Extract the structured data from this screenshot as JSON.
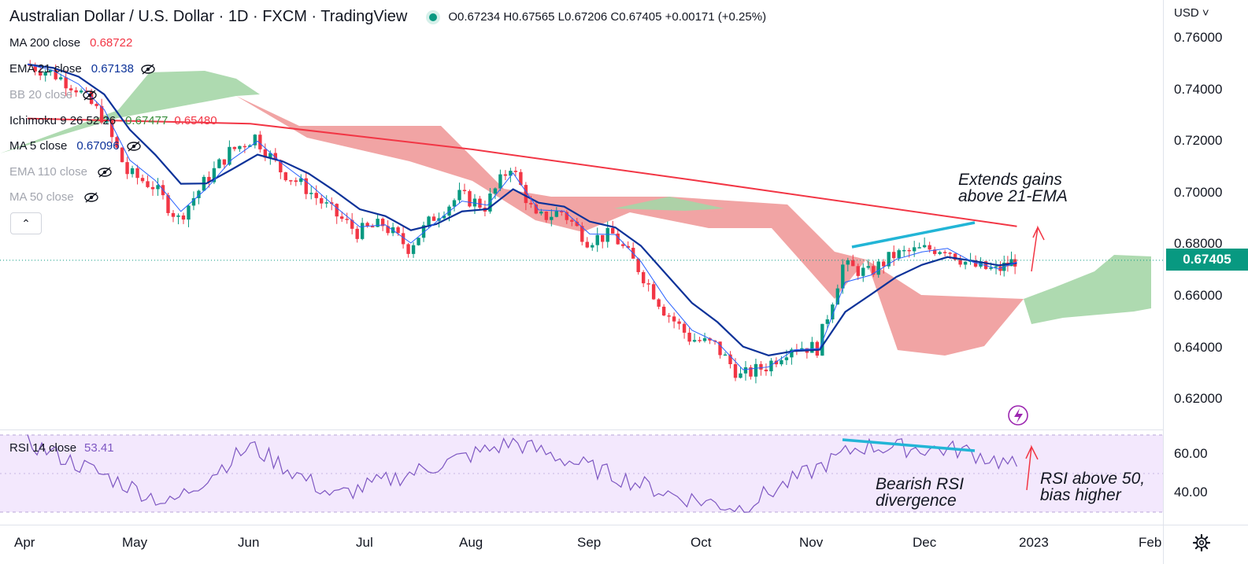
{
  "header": {
    "symbol_title": "Australian Dollar / U.S. Dollar · 1D · FXCM · TradingView",
    "ohlc": {
      "open": "O0.67234",
      "high": "H0.67565",
      "low": "L0.67206",
      "close": "C0.67405",
      "change": "+0.00171",
      "change_pct": "(+0.25%)"
    }
  },
  "indicators": [
    {
      "label": "MA 200 close",
      "values": [
        "0.68722"
      ],
      "color": "#f23645",
      "hidden": false
    },
    {
      "label": "EMA 21 close",
      "values": [
        "0.67138"
      ],
      "color": "#0c3299",
      "hidden": false
    },
    {
      "label": "BB 20 close",
      "values": [],
      "hidden": true
    },
    {
      "label": "Ichimoku 9 26 52 26",
      "values": [
        "0.67477",
        "0.65480"
      ],
      "colors": [
        "#388e3c",
        "#f23645"
      ],
      "hidden": false
    },
    {
      "label": "MA 5 close",
      "values": [
        "0.67096"
      ],
      "color": "#0c3299",
      "hidden": false
    },
    {
      "label": "EMA 110 close",
      "values": [],
      "hidden": true
    },
    {
      "label": "MA 50 close",
      "values": [],
      "hidden": true
    }
  ],
  "rsi_legend": {
    "label": "RSI 14 close",
    "value": "53.41"
  },
  "price_axis": {
    "currency": "USD",
    "ticks": [
      "0.76000",
      "0.74000",
      "0.72000",
      "0.70000",
      "0.68000",
      "0.66000",
      "0.64000",
      "0.62000"
    ],
    "last_price": "0.67405"
  },
  "rsi_axis": {
    "ticks": [
      "60.00",
      "40.00"
    ]
  },
  "time_axis": {
    "ticks": [
      "Apr",
      "May",
      "Jun",
      "Jul",
      "Aug",
      "Sep",
      "Oct",
      "Nov",
      "Dec",
      "2023",
      "Feb"
    ]
  },
  "annotations": {
    "price_note": "Extends gains\nabove 21-EMA",
    "rsi_div_note": "Bearish RSI\ndivergence",
    "rsi_bias_note": "RSI above 50,\nbias higher"
  },
  "colors": {
    "up": "#089981",
    "down": "#f23645",
    "ma200": "#f23645",
    "ema21": "#0c3299",
    "ma5": "#2962ff",
    "cloud_bull": "#a5d6a7",
    "cloud_bear": "#ef9a9a",
    "rsi_line": "#7e57c2",
    "rsi_band": "#f3e8fd",
    "trendline": "#22b5d6"
  },
  "chart_data": {
    "type": "candlestick",
    "symbol": "AUDUSD",
    "timeframe": "1D",
    "close_series": {
      "x": [
        "2022-04-01",
        "2022-04-08",
        "2022-04-15",
        "2022-04-22",
        "2022-04-29",
        "2022-05-06",
        "2022-05-13",
        "2022-05-20",
        "2022-05-27",
        "2022-06-03",
        "2022-06-10",
        "2022-06-17",
        "2022-06-24",
        "2022-07-01",
        "2022-07-08",
        "2022-07-15",
        "2022-07-22",
        "2022-07-29",
        "2022-08-05",
        "2022-08-12",
        "2022-08-19",
        "2022-08-26",
        "2022-09-02",
        "2022-09-09",
        "2022-09-16",
        "2022-09-23",
        "2022-09-30",
        "2022-10-07",
        "2022-10-14",
        "2022-10-21",
        "2022-10-28",
        "2022-11-04",
        "2022-11-11",
        "2022-11-18",
        "2022-11-25",
        "2022-12-02",
        "2022-12-09",
        "2022-12-16",
        "2022-12-23",
        "2022-12-28"
      ],
      "close": [
        0.75,
        0.747,
        0.741,
        0.73,
        0.708,
        0.703,
        0.69,
        0.704,
        0.716,
        0.722,
        0.709,
        0.702,
        0.693,
        0.685,
        0.688,
        0.679,
        0.691,
        0.699,
        0.695,
        0.711,
        0.69,
        0.693,
        0.682,
        0.684,
        0.671,
        0.655,
        0.644,
        0.641,
        0.629,
        0.633,
        0.641,
        0.64,
        0.672,
        0.669,
        0.676,
        0.678,
        0.679,
        0.672,
        0.67,
        0.67405
      ]
    },
    "ma200": {
      "x": [
        "2022-04-01",
        "2022-06-01",
        "2022-08-01",
        "2022-10-01",
        "2022-12-28"
      ],
      "y": [
        0.729,
        0.727,
        0.717,
        0.705,
        0.68722
      ]
    },
    "ema21_last": 0.67138,
    "ma5_last": 0.67096,
    "ichimoku_last": [
      0.67477,
      0.6548
    ],
    "rsi": {
      "x": [
        "2022-04-01",
        "2022-05-10",
        "2022-06-01",
        "2022-06-24",
        "2022-08-12",
        "2022-09-26",
        "2022-10-13",
        "2022-11-15",
        "2022-12-13",
        "2022-12-28"
      ],
      "y": [
        66,
        34,
        64,
        38,
        66,
        38,
        32,
        64,
        62,
        53.41
      ]
    },
    "price_ylim": [
      0.615,
      0.768
    ],
    "rsi_ylim": [
      25,
      72
    ],
    "xlabel": "",
    "ylabel": ""
  }
}
